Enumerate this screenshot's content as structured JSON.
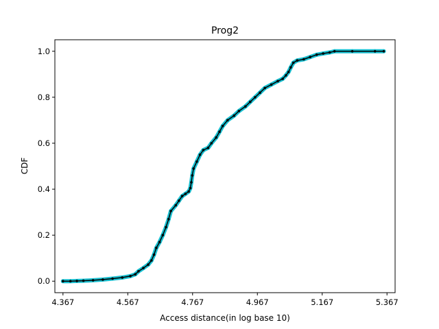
{
  "chart_data": {
    "type": "line",
    "title": "Prog2",
    "xlabel": "Access distance(in log base 10)",
    "ylabel": "CDF",
    "xlim": [
      4.342,
      5.392
    ],
    "ylim": [
      -0.05,
      1.05
    ],
    "xticks": [
      "4.367",
      "4.567",
      "4.767",
      "4.967",
      "5.167",
      "5.367"
    ],
    "yticks": [
      "0.0",
      "0.2",
      "0.4",
      "0.6",
      "0.8",
      "1.0"
    ],
    "grid": false,
    "colors": {
      "marker": "#17becf",
      "line": "#000000"
    },
    "series": [
      {
        "points": [
          [
            4.367,
            0.0
          ],
          [
            4.39,
            0.0
          ],
          [
            4.41,
            0.001
          ],
          [
            4.43,
            0.002
          ],
          [
            4.46,
            0.004
          ],
          [
            4.49,
            0.007
          ],
          [
            4.52,
            0.011
          ],
          [
            4.55,
            0.016
          ],
          [
            4.575,
            0.022
          ],
          [
            4.59,
            0.03
          ],
          [
            4.6,
            0.043
          ],
          [
            4.615,
            0.057
          ],
          [
            4.63,
            0.072
          ],
          [
            4.64,
            0.09
          ],
          [
            4.648,
            0.115
          ],
          [
            4.655,
            0.145
          ],
          [
            4.665,
            0.17
          ],
          [
            4.675,
            0.2
          ],
          [
            4.685,
            0.235
          ],
          [
            4.693,
            0.27
          ],
          [
            4.7,
            0.305
          ],
          [
            4.715,
            0.33
          ],
          [
            4.725,
            0.35
          ],
          [
            4.735,
            0.37
          ],
          [
            4.745,
            0.38
          ],
          [
            4.755,
            0.39
          ],
          [
            4.76,
            0.405
          ],
          [
            4.763,
            0.43
          ],
          [
            4.766,
            0.46
          ],
          [
            4.77,
            0.49
          ],
          [
            4.78,
            0.52
          ],
          [
            4.79,
            0.55
          ],
          [
            4.8,
            0.57
          ],
          [
            4.815,
            0.58
          ],
          [
            4.825,
            0.6
          ],
          [
            4.84,
            0.625
          ],
          [
            4.85,
            0.65
          ],
          [
            4.86,
            0.675
          ],
          [
            4.875,
            0.7
          ],
          [
            4.895,
            0.72
          ],
          [
            4.91,
            0.74
          ],
          [
            4.93,
            0.76
          ],
          [
            4.945,
            0.78
          ],
          [
            4.96,
            0.8
          ],
          [
            4.975,
            0.82
          ],
          [
            4.99,
            0.84
          ],
          [
            5.01,
            0.855
          ],
          [
            5.03,
            0.87
          ],
          [
            5.045,
            0.88
          ],
          [
            5.055,
            0.895
          ],
          [
            5.063,
            0.91
          ],
          [
            5.07,
            0.93
          ],
          [
            5.078,
            0.95
          ],
          [
            5.09,
            0.96
          ],
          [
            5.11,
            0.965
          ],
          [
            5.13,
            0.975
          ],
          [
            5.15,
            0.985
          ],
          [
            5.17,
            0.99
          ],
          [
            5.19,
            0.995
          ],
          [
            5.205,
            1.0
          ],
          [
            5.26,
            1.0
          ],
          [
            5.33,
            1.0
          ],
          [
            5.357,
            1.0
          ]
        ]
      }
    ]
  }
}
